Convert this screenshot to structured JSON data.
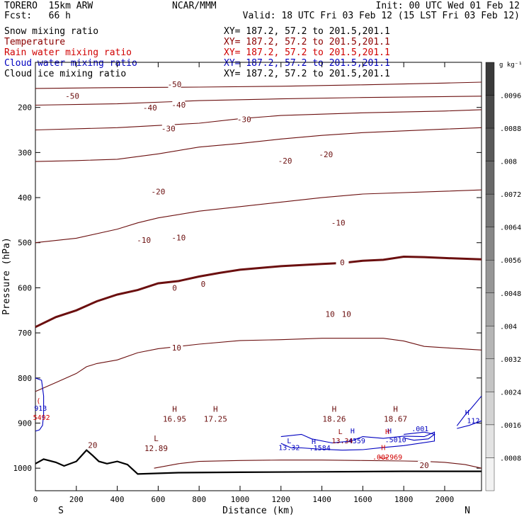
{
  "header": {
    "model": "TORERO  15km ARW",
    "forecast": "Fcst:   66 h",
    "center": "NCAR/MMM",
    "init": "Init: 00 UTC Wed 01 Feb 12",
    "valid": "Valid: 18 UTC Fri 03 Feb 12 (15 LST Fri 03 Feb 12)"
  },
  "fields": [
    {
      "label": "Snow mixing ratio",
      "xy": "XY= 187.2, 57.2 to 201.5,201.1",
      "color": "#000000"
    },
    {
      "label": "Temperature",
      "xy": "XY= 187.2, 57.2 to 201.5,201.1",
      "color": "#8b0000"
    },
    {
      "label": "Rain water mixing ratio",
      "xy": "XY= 187.2, 57.2 to 201.5,201.1",
      "color": "#d00000"
    },
    {
      "label": "Cloud water mixing ratio",
      "xy": "XY= 187.2, 57.2 to 201.5,201.1",
      "color": "#0000c0"
    },
    {
      "label": "Cloud ice mixing ratio",
      "xy": "XY= 187.2, 57.2 to 201.5,201.1",
      "color": "#000000"
    }
  ],
  "chart_data": {
    "type": "contour-cross-section",
    "xlabel": "Distance (km)",
    "ylabel": "Pressure (hPa)",
    "xlim": [
      0,
      2180
    ],
    "ylim": [
      1050,
      100
    ],
    "x_ticks": [
      0,
      200,
      400,
      600,
      800,
      1000,
      1200,
      1400,
      1600,
      1800,
      2000
    ],
    "y_ticks": [
      200,
      300,
      400,
      500,
      600,
      700,
      800,
      900,
      1000
    ],
    "x_end_labels": {
      "left": "S",
      "right": "N"
    },
    "colorbar": {
      "unit": "g kg⁻¹",
      "ticks": [
        ".0096",
        ".0088",
        ".008",
        ".0072",
        ".0064",
        ".0056",
        ".0048",
        ".004",
        ".0032",
        ".0024",
        ".0016",
        ".0008"
      ],
      "top_color": "#3a3a3a",
      "bottom_color": "#f2f2f2"
    },
    "isotherms": [
      {
        "value": -50,
        "points": [
          [
            0,
            158
          ],
          [
            400,
            156
          ],
          [
            800,
            155
          ],
          [
            1200,
            153
          ],
          [
            1600,
            150
          ],
          [
            2000,
            146
          ],
          [
            2180,
            144
          ]
        ]
      },
      {
        "value": -40,
        "points": [
          [
            0,
            195
          ],
          [
            400,
            192
          ],
          [
            800,
            185
          ],
          [
            1200,
            181
          ],
          [
            1600,
            178
          ],
          [
            2000,
            176
          ],
          [
            2180,
            175
          ]
        ]
      },
      {
        "value": -30,
        "points": [
          [
            0,
            250
          ],
          [
            400,
            245
          ],
          [
            800,
            235
          ],
          [
            1000,
            225
          ],
          [
            1200,
            218
          ],
          [
            1400,
            215
          ],
          [
            1600,
            212
          ],
          [
            2000,
            208
          ],
          [
            2180,
            205
          ]
        ]
      },
      {
        "value": -20,
        "points": [
          [
            0,
            320
          ],
          [
            200,
            318
          ],
          [
            400,
            315
          ],
          [
            600,
            303
          ],
          [
            800,
            288
          ],
          [
            1000,
            280
          ],
          [
            1200,
            270
          ],
          [
            1400,
            262
          ],
          [
            1600,
            256
          ],
          [
            2000,
            248
          ],
          [
            2180,
            245
          ]
        ]
      },
      {
        "value": -10,
        "points": [
          [
            0,
            500
          ],
          [
            200,
            490
          ],
          [
            400,
            470
          ],
          [
            500,
            456
          ],
          [
            600,
            445
          ],
          [
            800,
            430
          ],
          [
            1000,
            420
          ],
          [
            1200,
            410
          ],
          [
            1400,
            400
          ],
          [
            1600,
            392
          ],
          [
            2000,
            386
          ],
          [
            2180,
            383
          ]
        ]
      },
      {
        "value": 0,
        "bold": true,
        "points": [
          [
            0,
            687
          ],
          [
            100,
            665
          ],
          [
            200,
            650
          ],
          [
            300,
            630
          ],
          [
            400,
            615
          ],
          [
            500,
            605
          ],
          [
            600,
            590
          ],
          [
            700,
            585
          ],
          [
            800,
            575
          ],
          [
            900,
            567
          ],
          [
            1000,
            560
          ],
          [
            1200,
            552
          ],
          [
            1400,
            547
          ],
          [
            1500,
            545
          ],
          [
            1600,
            540
          ],
          [
            1700,
            538
          ],
          [
            1800,
            531
          ],
          [
            1900,
            532
          ],
          [
            2000,
            534
          ],
          [
            2180,
            537
          ]
        ]
      },
      {
        "value": 10,
        "points": [
          [
            0,
            830
          ],
          [
            100,
            810
          ],
          [
            200,
            790
          ],
          [
            250,
            775
          ],
          [
            300,
            768
          ],
          [
            400,
            760
          ],
          [
            500,
            744
          ],
          [
            600,
            735
          ],
          [
            800,
            725
          ],
          [
            1000,
            717
          ],
          [
            1200,
            715
          ],
          [
            1400,
            712
          ],
          [
            1600,
            712
          ],
          [
            1700,
            712
          ],
          [
            1800,
            718
          ],
          [
            1900,
            730
          ],
          [
            2000,
            733
          ],
          [
            2180,
            738
          ]
        ]
      },
      {
        "value": 20,
        "points": [
          [
            580,
            1000
          ],
          [
            700,
            990
          ],
          [
            800,
            985
          ],
          [
            1000,
            983
          ],
          [
            1200,
            982
          ],
          [
            1400,
            982
          ],
          [
            1600,
            983
          ],
          [
            1800,
            984
          ],
          [
            1900,
            985
          ],
          [
            2000,
            987
          ],
          [
            2100,
            992
          ],
          [
            2180,
            1000
          ]
        ]
      }
    ],
    "isotherm_labels": [
      {
        "text": "-50",
        "x": 180,
        "p": 176
      },
      {
        "text": "-50",
        "x": 680,
        "p": 150
      },
      {
        "text": "-40",
        "x": 560,
        "p": 202
      },
      {
        "text": "-40",
        "x": 700,
        "p": 196
      },
      {
        "text": "-30",
        "x": 650,
        "p": 248
      },
      {
        "text": "-30",
        "x": 1020,
        "p": 228
      },
      {
        "text": "-20",
        "x": 600,
        "p": 388
      },
      {
        "text": "-20",
        "x": 1220,
        "p": 320
      },
      {
        "text": "-20",
        "x": 1420,
        "p": 306
      },
      {
        "text": "-10",
        "x": 530,
        "p": 496
      },
      {
        "text": "-10",
        "x": 700,
        "p": 490
      },
      {
        "text": "-10",
        "x": 1480,
        "p": 457
      },
      {
        "text": "0",
        "x": 680,
        "p": 602
      },
      {
        "text": "0",
        "x": 820,
        "p": 593
      },
      {
        "text": "0",
        "x": 1500,
        "p": 545
      },
      {
        "text": "10",
        "x": 1440,
        "p": 660
      },
      {
        "text": "10",
        "x": 1520,
        "p": 660
      },
      {
        "text": "10",
        "x": 690,
        "p": 734
      },
      {
        "text": "20",
        "x": 280,
        "p": 950
      },
      {
        "text": "20",
        "x": 1900,
        "p": 995
      }
    ],
    "extrema": [
      {
        "mark": "H",
        "value": "16.95",
        "x": 680,
        "p": 875
      },
      {
        "mark": "H",
        "value": "17.25",
        "x": 880,
        "p": 875
      },
      {
        "mark": "H",
        "value": "18.26",
        "x": 1460,
        "p": 875
      },
      {
        "mark": "H",
        "value": "18.67",
        "x": 1760,
        "p": 875
      },
      {
        "mark": "L",
        "value": "12.89",
        "x": 590,
        "p": 940
      }
    ],
    "cloud_water_contours": [
      {
        "points": [
          [
            0,
            800
          ],
          [
            30,
            805
          ],
          [
            40,
            840
          ],
          [
            40,
            880
          ],
          [
            35,
            905
          ],
          [
            20,
            915
          ],
          [
            0,
            918
          ]
        ]
      },
      {
        "points": [
          [
            1200,
            930
          ],
          [
            1300,
            925
          ],
          [
            1350,
            935
          ],
          [
            1450,
            944
          ],
          [
            1540,
            940
          ],
          [
            1600,
            930
          ],
          [
            1700,
            934
          ],
          [
            1800,
            929
          ],
          [
            1900,
            930
          ],
          [
            1950,
            920
          ],
          [
            1950,
            940
          ],
          [
            1800,
            950
          ],
          [
            1700,
            954
          ],
          [
            1600,
            959
          ],
          [
            1500,
            960
          ],
          [
            1400,
            958
          ],
          [
            1300,
            955
          ],
          [
            1250,
            955
          ],
          [
            1200,
            945
          ]
        ]
      },
      {
        "points": [
          [
            1800,
            925
          ],
          [
            1900,
            920
          ],
          [
            1950,
            925
          ],
          [
            1920,
            935
          ],
          [
            1850,
            938
          ],
          [
            1800,
            933
          ]
        ]
      },
      {
        "points": [
          [
            2060,
            906
          ],
          [
            2100,
            882
          ],
          [
            2130,
            867
          ],
          [
            2180,
            840
          ]
        ]
      },
      {
        "points": [
          [
            2060,
            912
          ],
          [
            2120,
            905
          ],
          [
            2180,
            895
          ]
        ]
      }
    ],
    "rain_contours": [
      {
        "points": [
          [
            1680,
            975
          ],
          [
            1700,
            980
          ],
          [
            1720,
            975
          ]
        ]
      }
    ],
    "cloud_labels": [
      {
        "text": "913",
        "x": 25,
        "p": 868,
        "color": "#0000c0"
      },
      {
        "text": "L",
        "x": 1240,
        "p": 940,
        "color": "#0000c0"
      },
      {
        "text": "13.32",
        "x": 1240,
        "p": 955,
        "color": "#0000c0"
      },
      {
        "text": "H",
        "x": 1360,
        "p": 942,
        "color": "#0000c0"
      },
      {
        "text": ".1584",
        "x": 1390,
        "p": 956,
        "color": "#0000c0"
      },
      {
        "text": "H",
        "x": 1550,
        "p": 918,
        "color": "#0000c0"
      },
      {
        "text": ".4359",
        "x": 1560,
        "p": 940,
        "color": "#0000c0"
      },
      {
        "text": "H",
        "x": 1730,
        "p": 918,
        "color": "#0000c0"
      },
      {
        "text": ".5010",
        "x": 1760,
        "p": 938,
        "color": "#0000c0"
      },
      {
        "text": ".001",
        "x": 1880,
        "p": 913,
        "color": "#0000c0"
      },
      {
        "text": "H",
        "x": 2110,
        "p": 877,
        "color": "#0000c0"
      },
      {
        "text": "112",
        "x": 2140,
        "p": 895,
        "color": "#0000c0"
      },
      {
        "text": "L",
        "x": 1490,
        "p": 920,
        "color": "#8b0000"
      },
      {
        "text": "13.34",
        "x": 1500,
        "p": 940,
        "color": "#8b0000"
      },
      {
        "text": "H",
        "x": 1700,
        "p": 955,
        "color": "#d00000"
      },
      {
        "text": ".002969",
        "x": 1720,
        "p": 976,
        "color": "#d00000"
      },
      {
        "text": "H",
        "x": 1720,
        "p": 920,
        "color": "#d00000"
      },
      {
        "text": "5492",
        "x": 30,
        "p": 888,
        "color": "#d00000"
      },
      {
        "text": "(",
        "x": 15,
        "p": 851,
        "color": "#d00000"
      }
    ],
    "terrain": [
      [
        0,
        990
      ],
      [
        40,
        980
      ],
      [
        100,
        987
      ],
      [
        140,
        995
      ],
      [
        200,
        985
      ],
      [
        250,
        960
      ],
      [
        280,
        972
      ],
      [
        310,
        985
      ],
      [
        350,
        990
      ],
      [
        400,
        985
      ],
      [
        450,
        992
      ],
      [
        500,
        1013
      ],
      [
        700,
        1010
      ],
      [
        1000,
        1009
      ],
      [
        1400,
        1008
      ],
      [
        1800,
        1007
      ],
      [
        2180,
        1007
      ]
    ]
  }
}
